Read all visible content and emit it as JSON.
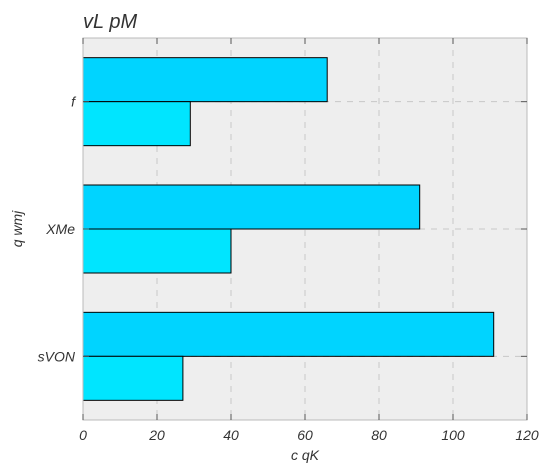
{
  "chart_data": {
    "type": "bar",
    "orientation": "horizontal",
    "title": "vL pM",
    "xlabel": "c  qK",
    "ylabel": "q wmj",
    "categories": [
      "sVON",
      "XMe",
      "f"
    ],
    "series": [
      {
        "values": [
          111,
          91,
          66
        ],
        "color": "#00d4ff"
      },
      {
        "values": [
          27,
          40,
          29
        ],
        "color": "#00e5ff"
      }
    ],
    "xlim": [
      0,
      120
    ],
    "xticks": [
      "0",
      "20",
      "40",
      "60",
      "80",
      "100",
      "120"
    ],
    "grid": true,
    "grid_style": "dashed",
    "background_color": "#eeeeee",
    "frame_color": "#bbbbbb",
    "edge_color": "#000000",
    "text_color": "#333333"
  }
}
